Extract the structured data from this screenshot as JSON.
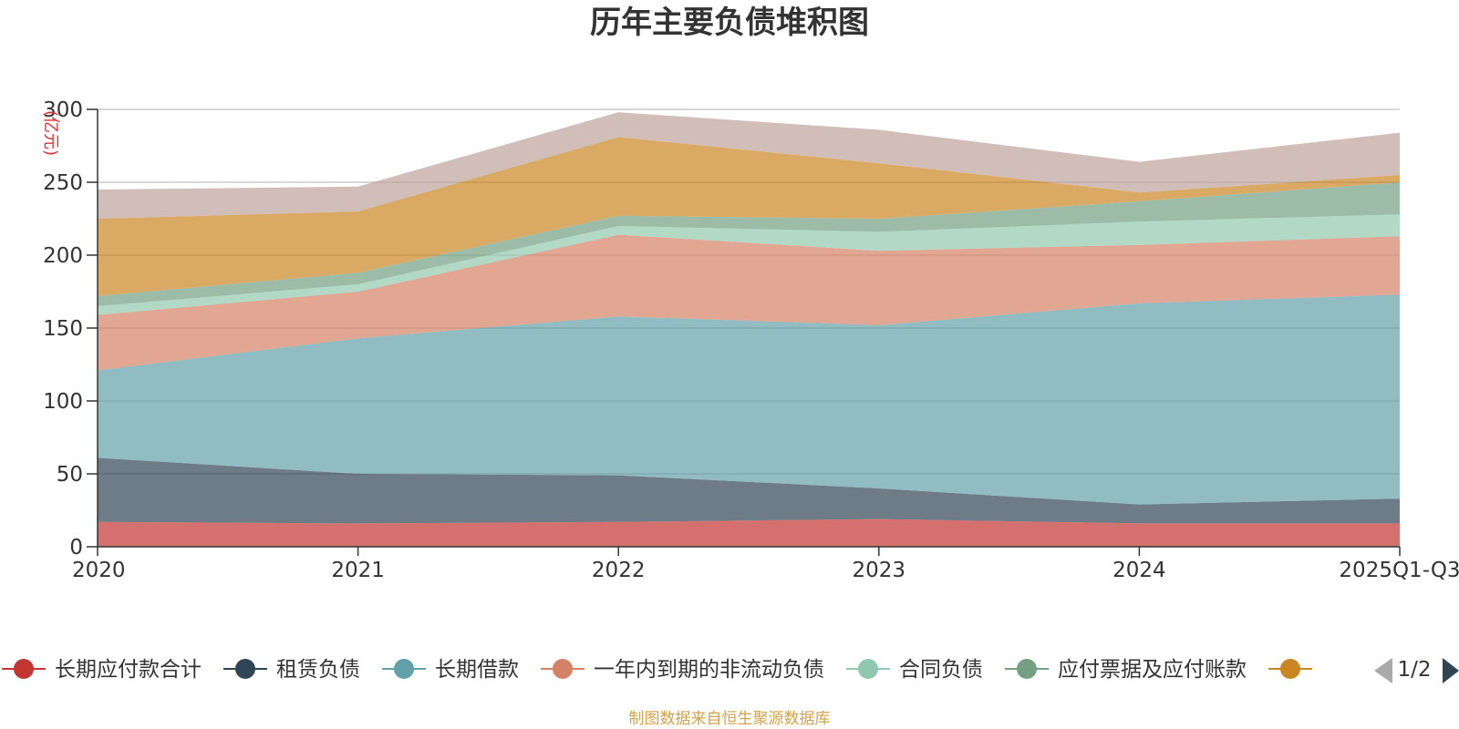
{
  "chart_data": {
    "type": "area",
    "stacked": true,
    "title": "历年主要负债堆积图",
    "ylabel": "(亿元)",
    "xlabel": "",
    "categories": [
      "2020",
      "2021",
      "2022",
      "2023",
      "2024",
      "2025Q1-Q3"
    ],
    "ylim": [
      0,
      300
    ],
    "yticks": [
      0,
      50,
      100,
      150,
      200,
      250,
      300
    ],
    "grid": true,
    "legend_position": "bottom",
    "legend_page": "1/2",
    "series": [
      {
        "name": "长期应付款合计",
        "color": "#c23531",
        "values": [
          17,
          16,
          17,
          19,
          16,
          16
        ]
      },
      {
        "name": "租赁负债",
        "color": "#2f4554",
        "values": [
          44,
          34,
          32,
          21,
          13,
          17
        ]
      },
      {
        "name": "长期借款",
        "color": "#61a0a8",
        "values": [
          60,
          93,
          109,
          112,
          138,
          140
        ]
      },
      {
        "name": "一年内到期的非流动负债",
        "color": "#d48265",
        "values": [
          38,
          32,
          56,
          51,
          40,
          40
        ]
      },
      {
        "name": "合同负债",
        "color": "#91c7ae",
        "values": [
          6,
          5,
          6,
          13,
          16,
          15
        ]
      },
      {
        "name": "应付票据及应付账款",
        "color": "#749f83",
        "values": [
          7,
          8,
          7,
          9,
          14,
          22
        ]
      },
      {
        "name": "",
        "color": "#ca8622",
        "values": [
          53,
          42,
          54,
          38,
          6,
          5
        ]
      },
      {
        "name": "",
        "color": "#bda29a",
        "values": [
          20,
          17,
          17,
          23,
          21,
          29
        ]
      }
    ]
  },
  "footer": {
    "source": "制图数据来自恒生聚源数据库"
  },
  "colors": {
    "pager_prev_disabled": "#aaaaaa",
    "pager_next_active": "#2f4554",
    "source_text": "#d4a24a"
  }
}
